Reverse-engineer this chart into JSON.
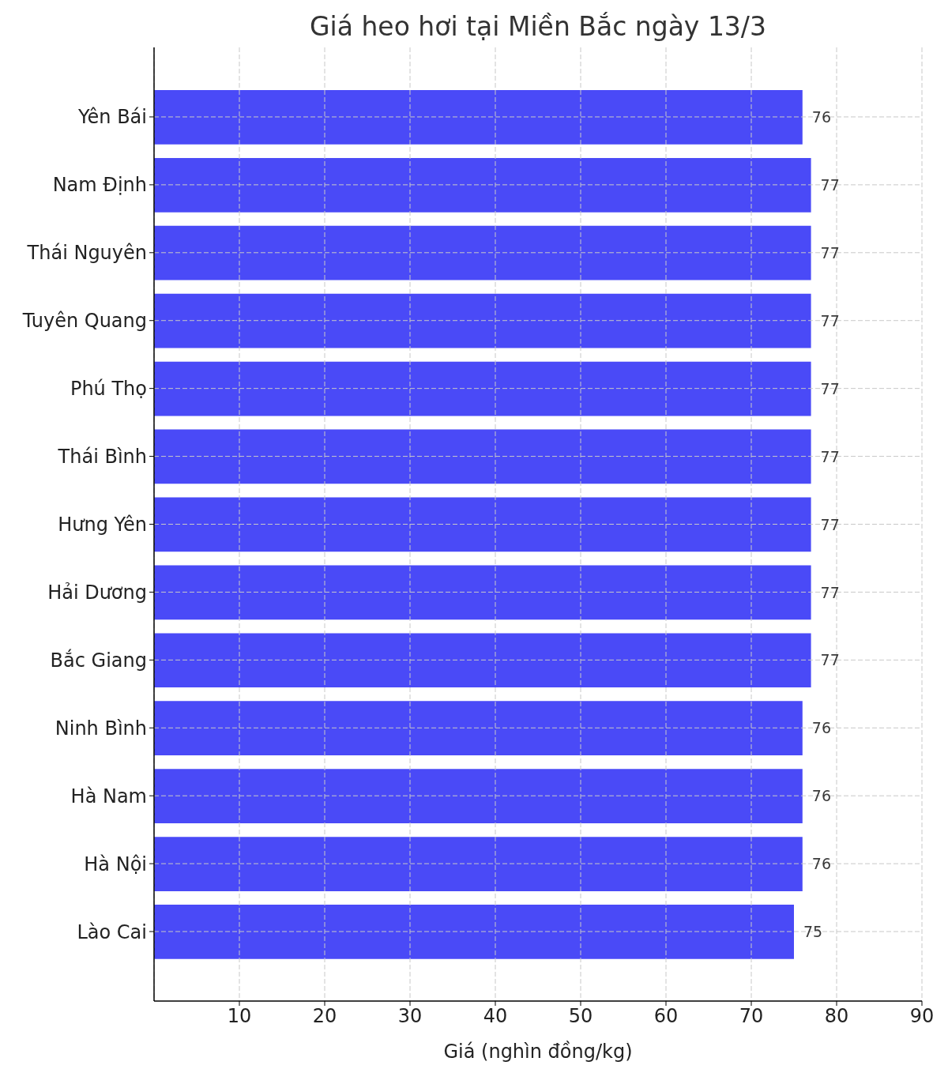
{
  "chart_data": {
    "type": "bar",
    "orientation": "horizontal",
    "title": "Giá heo hơi tại Miền Bắc ngày 13/3",
    "xlabel": "Giá (nghìn đồng/kg)",
    "categories": [
      "Yên Bái",
      "Nam Định",
      "Thái Nguyên",
      "Tuyên Quang",
      "Phú Thọ",
      "Thái Bình",
      "Hưng Yên",
      "Hải Dương",
      "Bắc Giang",
      "Ninh Bình",
      "Hà Nam",
      "Hà Nội",
      "Lào Cai"
    ],
    "values": [
      76,
      77,
      77,
      77,
      77,
      77,
      77,
      77,
      77,
      76,
      76,
      76,
      75
    ],
    "color": "#4a4af7",
    "xlim": [
      0,
      90
    ],
    "xticks": [
      10,
      20,
      30,
      40,
      50,
      60,
      70,
      80,
      90
    ],
    "grid": true,
    "data_labels": true
  }
}
